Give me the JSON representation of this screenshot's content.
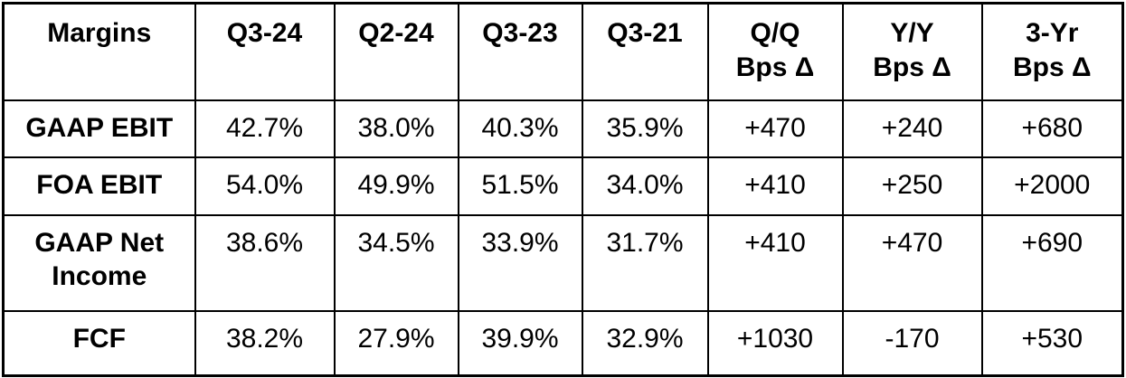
{
  "table": {
    "header": [
      {
        "lines": [
          "Margins"
        ]
      },
      {
        "lines": [
          "Q3-24"
        ]
      },
      {
        "lines": [
          "Q2-24"
        ]
      },
      {
        "lines": [
          "Q3-23"
        ]
      },
      {
        "lines": [
          "Q3-21"
        ]
      },
      {
        "lines": [
          "Q/Q",
          "Bps Δ"
        ]
      },
      {
        "lines": [
          "Y/Y",
          "Bps Δ"
        ]
      },
      {
        "lines": [
          "3-Yr",
          "Bps Δ"
        ]
      }
    ],
    "rows": [
      {
        "label": "GAAP EBIT",
        "values": [
          "42.7%",
          "38.0%",
          "40.3%",
          "35.9%",
          "+470",
          "+240",
          "+680"
        ]
      },
      {
        "label": "FOA EBIT",
        "values": [
          "54.0%",
          "49.9%",
          "51.5%",
          "34.0%",
          "+410",
          "+250",
          "+2000"
        ]
      },
      {
        "label": "GAAP Net Income",
        "values": [
          "38.6%",
          "34.5%",
          "33.9%",
          "31.7%",
          "+410",
          "+470",
          "+690"
        ]
      },
      {
        "label": "FCF",
        "values": [
          "38.2%",
          "27.9%",
          "39.9%",
          "32.9%",
          "+1030",
          "-170",
          "+530"
        ]
      }
    ],
    "colors": {
      "border": "#000000",
      "text": "#000000",
      "background": "#ffffff"
    }
  },
  "chart_data": {
    "type": "table",
    "columns": [
      "Margins",
      "Q3-24",
      "Q2-24",
      "Q3-23",
      "Q3-21",
      "Q/Q Bps Δ",
      "Y/Y Bps Δ",
      "3-Yr Bps Δ"
    ],
    "rows": [
      [
        "GAAP EBIT",
        "42.7%",
        "38.0%",
        "40.3%",
        "35.9%",
        "+470",
        "+240",
        "+680"
      ],
      [
        "FOA EBIT",
        "54.0%",
        "49.9%",
        "51.5%",
        "34.0%",
        "+410",
        "+250",
        "+2000"
      ],
      [
        "GAAP Net Income",
        "38.6%",
        "34.5%",
        "33.9%",
        "31.7%",
        "+410",
        "+470",
        "+690"
      ],
      [
        "FCF",
        "38.2%",
        "27.9%",
        "39.9%",
        "32.9%",
        "+1030",
        "-170",
        "+530"
      ]
    ]
  }
}
